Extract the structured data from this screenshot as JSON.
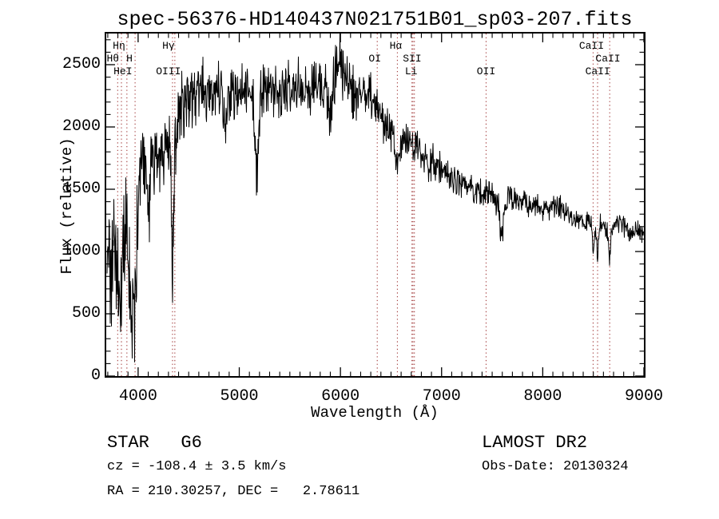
{
  "page": {
    "background": "#ffffff"
  },
  "chart_data": {
    "type": "line",
    "title": "spec-56376-HD140437N021751B01_sp03-207.fits",
    "xlabel": "Wavelength (Å)",
    "ylabel": "Flux (relative)",
    "xlim": [
      3685,
      9000
    ],
    "ylim": [
      0,
      2750
    ],
    "xticks": [
      4000,
      5000,
      6000,
      7000,
      8000,
      9000
    ],
    "yticks": [
      0,
      500,
      1000,
      1500,
      2000,
      2500
    ],
    "x_minor_step": 100,
    "y_minor_step": 100,
    "grid": false,
    "legend": "none",
    "line_color": "#000000",
    "marker_color": "#a23b3b",
    "noise_seed": 20130324,
    "spectral_line_wavelengths": [
      3798,
      3835,
      3889,
      3970,
      4340,
      4363,
      6364,
      6563,
      6707,
      6717,
      6731,
      7440,
      8498,
      8542,
      8662
    ],
    "spectral_line_labels": [
      {
        "text": "Hη",
        "wavelength": 3835,
        "row": 1,
        "dx": -3
      },
      {
        "text": "Hθ",
        "wavelength": 3798,
        "row": 2,
        "dx": -6
      },
      {
        "text": "H",
        "wavelength": 3970,
        "row": 2,
        "dx": -7
      },
      {
        "text": "HeI",
        "wavelength": 3889,
        "row": 3,
        "dx": -5
      },
      {
        "text": "Hγ",
        "wavelength": 4340,
        "row": 1,
        "dx": -5
      },
      {
        "text": "OIII",
        "wavelength": 4363,
        "row": 3,
        "dx": -8
      },
      {
        "text": "Hα",
        "wavelength": 6563,
        "row": 1,
        "dx": -2
      },
      {
        "text": "OI",
        "wavelength": 6364,
        "row": 2,
        "dx": -3
      },
      {
        "text": "SII",
        "wavelength": 6717,
        "row": 2,
        "dx": -1
      },
      {
        "text": "Li",
        "wavelength": 6707,
        "row": 3,
        "dx": -1
      },
      {
        "text": "OII",
        "wavelength": 7440,
        "row": 3,
        "dx": 0
      },
      {
        "text": "CaII",
        "wavelength": 8498,
        "row": 1,
        "dx": -2
      },
      {
        "text": "CaII",
        "wavelength": 8542,
        "row": 2,
        "dx": 13
      },
      {
        "text": "CaII",
        "wavelength": 8662,
        "row": 3,
        "dx": -15
      }
    ],
    "spectrum_anchors": {
      "wavelength": [
        3692,
        3720,
        3755,
        3790,
        3825,
        3855,
        3885,
        3915,
        3940,
        3975,
        4000,
        4030,
        4070,
        4110,
        4150,
        4200,
        4250,
        4300,
        4345,
        4390,
        4440,
        4490,
        4540,
        4590,
        4640,
        4700,
        4760,
        4820,
        4880,
        4940,
        5000,
        5060,
        5120,
        5180,
        5240,
        5300,
        5360,
        5420,
        5480,
        5540,
        5600,
        5660,
        5720,
        5780,
        5840,
        5900,
        5945,
        5985,
        6015,
        6060,
        6110,
        6170,
        6230,
        6290,
        6340,
        6390,
        6440,
        6490,
        6540,
        6590,
        6650,
        6710,
        6770,
        6830,
        6890,
        6950,
        7010,
        7080,
        7150,
        7220,
        7290,
        7360,
        7430,
        7500,
        7560,
        7630,
        7700,
        7770,
        7840,
        7910,
        7980,
        8050,
        8120,
        8190,
        8260,
        8330,
        8400,
        8460,
        8520,
        8580,
        8640,
        8700,
        8760,
        8820,
        8880,
        8940,
        9000
      ],
      "flux": [
        900,
        950,
        1150,
        750,
        600,
        1050,
        1350,
        950,
        800,
        900,
        1500,
        1720,
        1700,
        1650,
        1780,
        1880,
        1820,
        1950,
        1800,
        2050,
        2180,
        2250,
        2220,
        2300,
        2340,
        2300,
        2260,
        2280,
        2300,
        2290,
        2250,
        2300,
        2280,
        2170,
        2280,
        2300,
        2260,
        2300,
        2280,
        2260,
        2310,
        2320,
        2310,
        2350,
        2320,
        2300,
        2420,
        2540,
        2520,
        2400,
        2300,
        2240,
        2230,
        2260,
        2230,
        2080,
        2010,
        1960,
        1920,
        1900,
        1880,
        1860,
        1820,
        1780,
        1740,
        1700,
        1650,
        1610,
        1560,
        1535,
        1515,
        1495,
        1465,
        1445,
        1400,
        1400,
        1420,
        1405,
        1390,
        1370,
        1345,
        1345,
        1370,
        1355,
        1290,
        1260,
        1245,
        1225,
        1190,
        1225,
        1180,
        1210,
        1250,
        1200,
        1160,
        1140,
        1150
      ],
      "noise_amplitude": [
        500,
        550,
        600,
        400,
        300,
        550,
        500,
        450,
        400,
        450,
        350,
        260,
        280,
        300,
        300,
        300,
        330,
        280,
        350,
        280,
        250,
        240,
        240,
        230,
        230,
        210,
        230,
        240,
        210,
        220,
        210,
        220,
        220,
        260,
        210,
        200,
        220,
        200,
        210,
        200,
        220,
        200,
        210,
        210,
        240,
        260,
        240,
        210,
        220,
        230,
        210,
        200,
        190,
        180,
        180,
        170,
        160,
        150,
        150,
        140,
        140,
        140,
        130,
        140,
        130,
        130,
        120,
        120,
        110,
        110,
        105,
        100,
        100,
        100,
        110,
        100,
        100,
        95,
        95,
        95,
        90,
        90,
        85,
        85,
        90,
        90,
        85,
        80,
        85,
        80,
        85,
        80,
        80,
        80,
        80,
        85,
        90
      ]
    },
    "absorption_dips": [
      {
        "wavelength": 3933,
        "depth": 350,
        "width": 12
      },
      {
        "wavelength": 3970,
        "depth": 330,
        "width": 12
      },
      {
        "wavelength": 4101,
        "depth": 300,
        "width": 12
      },
      {
        "wavelength": 4340,
        "depth": 780,
        "width": 12
      },
      {
        "wavelength": 4861,
        "depth": 380,
        "width": 12
      },
      {
        "wavelength": 5175,
        "depth": 480,
        "width": 18
      },
      {
        "wavelength": 5892,
        "depth": 330,
        "width": 12
      },
      {
        "wavelength": 6563,
        "depth": 260,
        "width": 13
      },
      {
        "wavelength": 6870,
        "depth": 160,
        "width": 14
      },
      {
        "wavelength": 7594,
        "depth": 290,
        "width": 16
      },
      {
        "wavelength": 8498,
        "depth": 230,
        "width": 8
      },
      {
        "wavelength": 8542,
        "depth": 250,
        "width": 8
      },
      {
        "wavelength": 8662,
        "depth": 280,
        "width": 8
      }
    ]
  },
  "annotations": {
    "class_label": "STAR   G6",
    "survey": "LAMOST DR2",
    "cz": "cz = -108.4 ± 3.5 km/s",
    "obs_date": "Obs-Date: 20130324",
    "ra_dec": "RA = 210.30257, DEC =   2.78611"
  }
}
